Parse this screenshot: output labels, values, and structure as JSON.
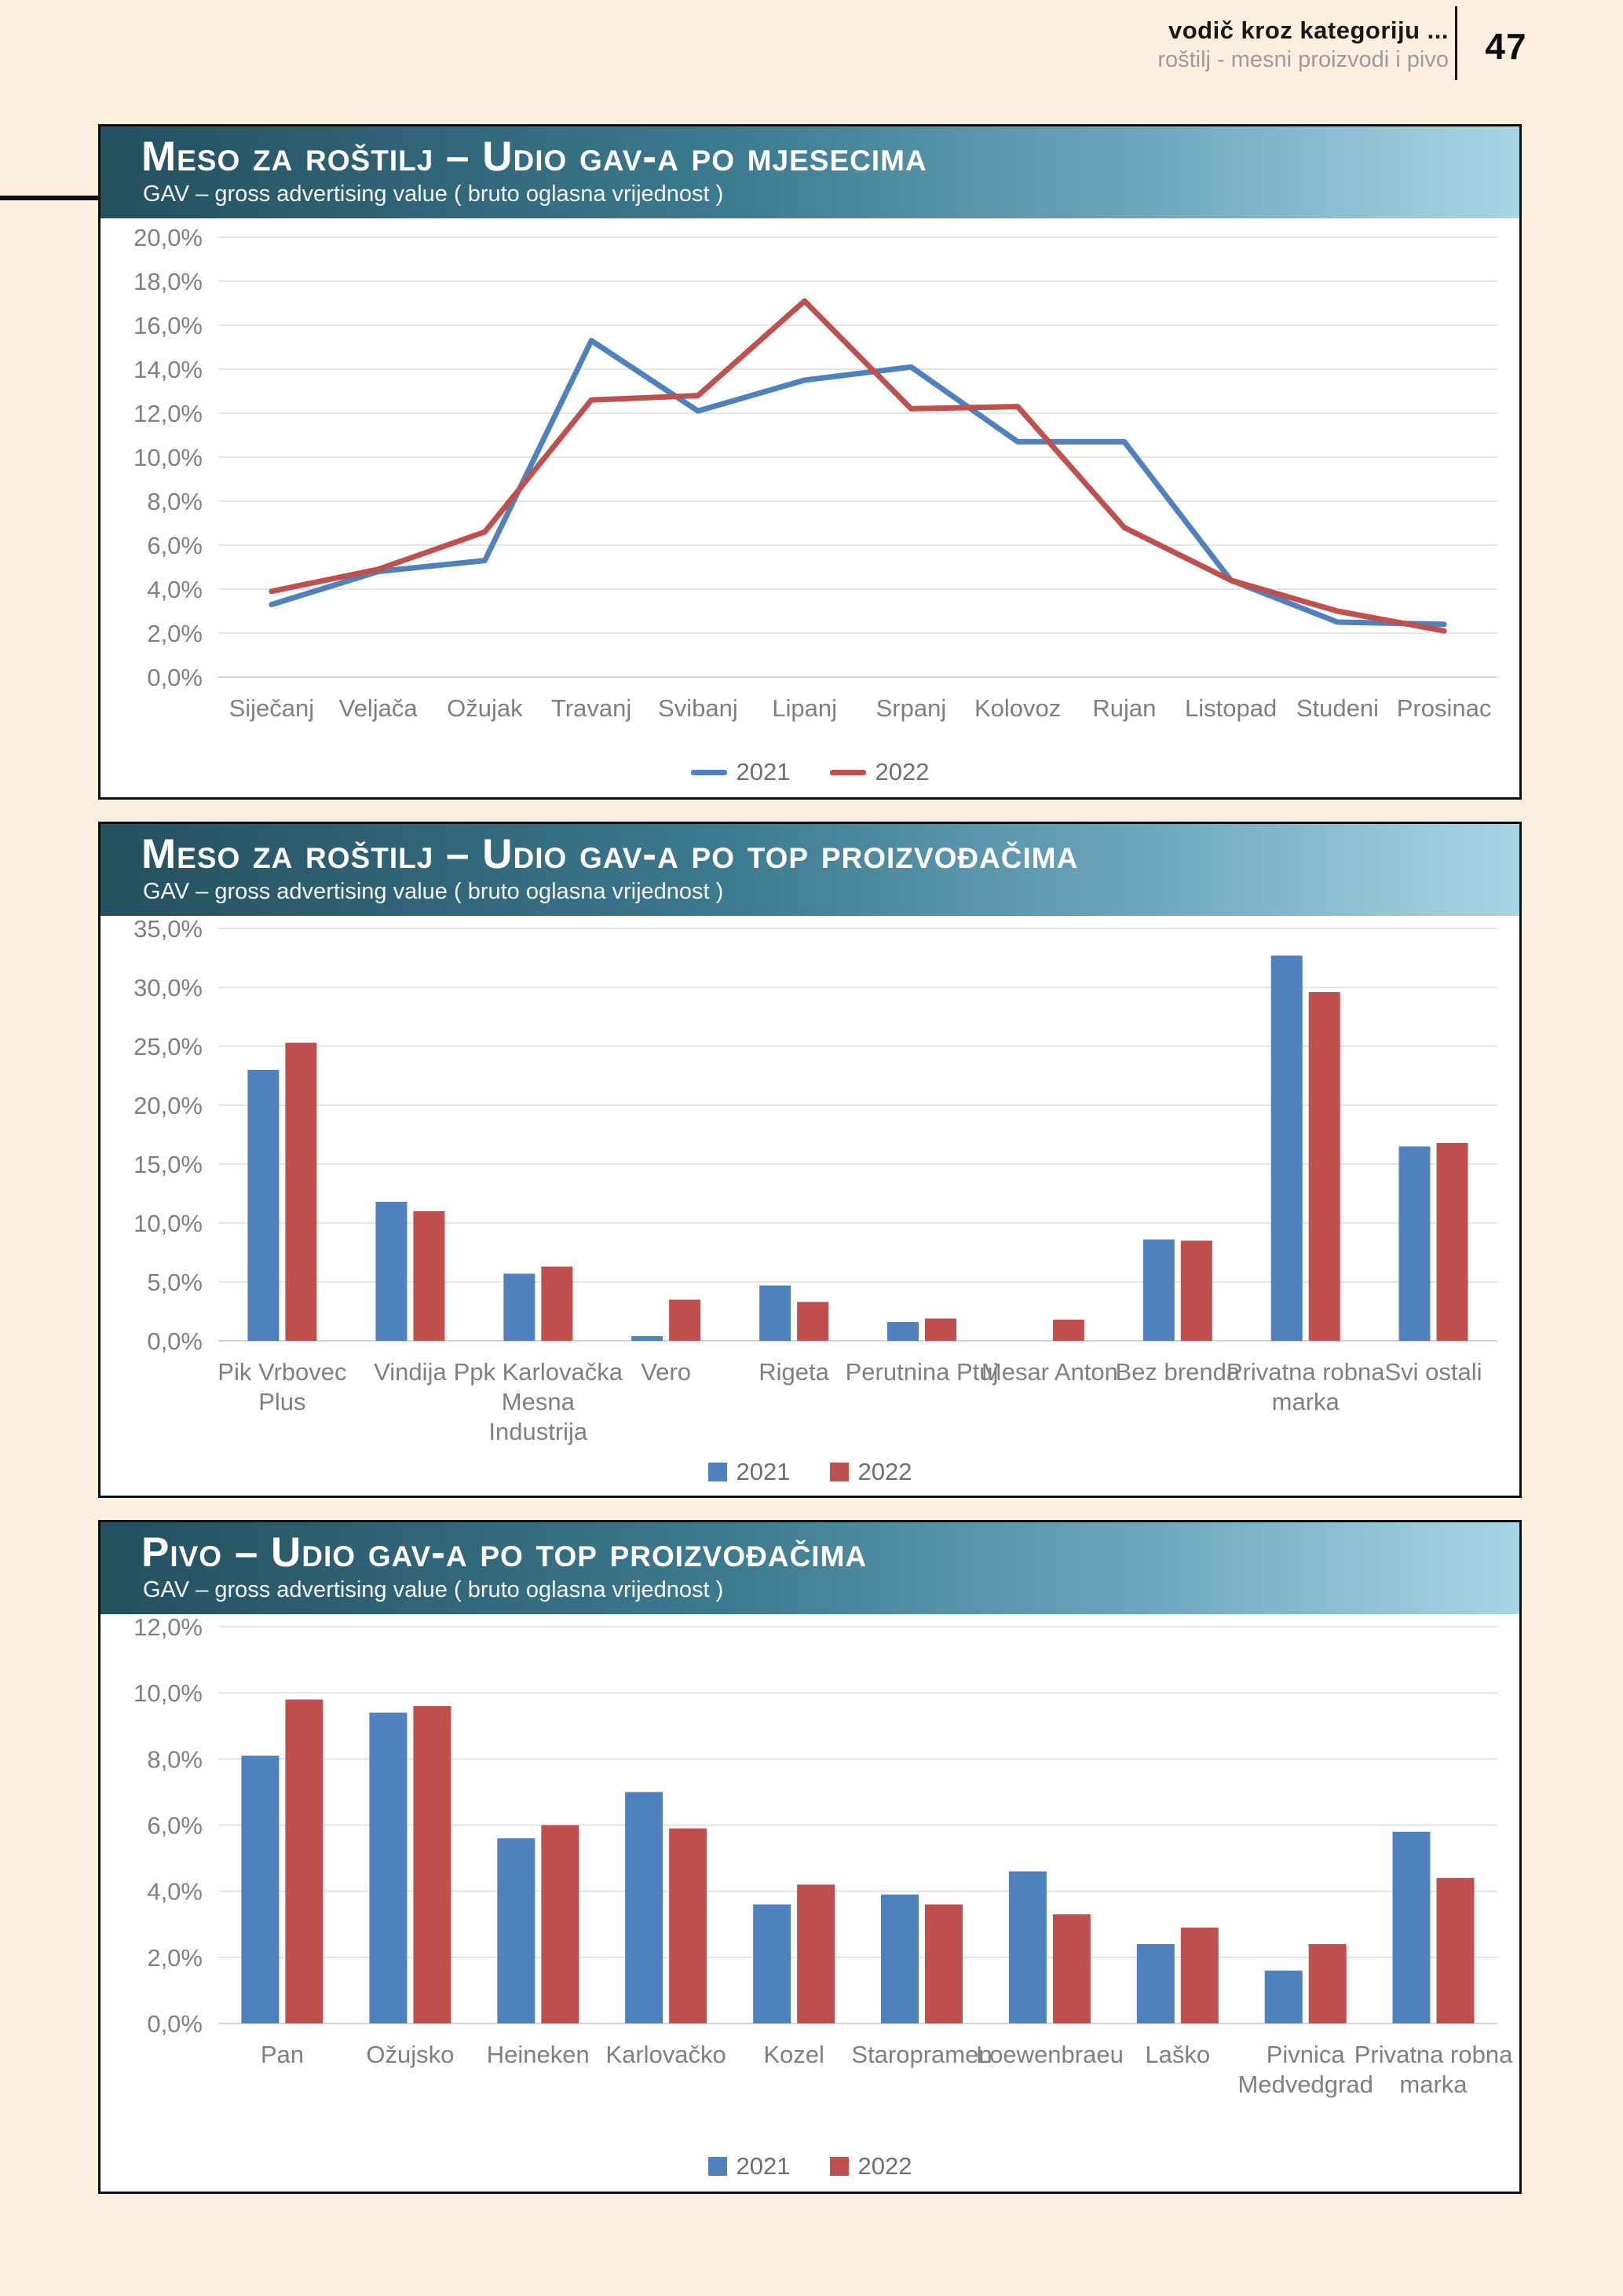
{
  "header": {
    "title": "vodič kroz kategoriju ...",
    "subtitle": "roštilj - mesni proizvodi i pivo",
    "page_number": "47"
  },
  "colors": {
    "series_2021": "#4e81bd",
    "series_2022": "#c0504d",
    "title_gradient_start": "#24505f",
    "title_gradient_end": "#a9d5e5",
    "page_background": "#fcefdf",
    "grid": "#dedede",
    "axis_line": "#c9c9c9",
    "tick_text": "#7f7f7f"
  },
  "charts": [
    {
      "title": "Meso za roštilj – Udio gav-a po mjesecima",
      "subtitle": "GAV – gross advertising value ( bruto oglasna vrijednost )",
      "chart_data": {
        "type": "line",
        "categories": [
          "Siječanj",
          "Veljača",
          "Ožujak",
          "Travanj",
          "Svibanj",
          "Lipanj",
          "Srpanj",
          "Kolovoz",
          "Rujan",
          "Listopad",
          "Studeni",
          "Prosinac"
        ],
        "category_lines": [
          [
            "Siječanj"
          ],
          [
            "Veljača"
          ],
          [
            "Ožujak"
          ],
          [
            "Travanj"
          ],
          [
            "Svibanj"
          ],
          [
            "Lipanj"
          ],
          [
            "Srpanj"
          ],
          [
            "Kolovoz"
          ],
          [
            "Rujan"
          ],
          [
            "Listopad"
          ],
          [
            "Studeni"
          ],
          [
            "Prosinac"
          ]
        ],
        "series": [
          {
            "name": "2021",
            "color": "#4e81bd",
            "values": [
              3.3,
              4.8,
              5.3,
              15.3,
              12.1,
              13.5,
              14.1,
              10.7,
              10.7,
              4.4,
              2.5,
              2.4
            ]
          },
          {
            "name": "2022",
            "color": "#c0504d",
            "values": [
              3.9,
              4.9,
              6.6,
              12.6,
              12.8,
              17.1,
              12.2,
              12.3,
              6.8,
              4.4,
              3.0,
              2.1
            ]
          }
        ],
        "ylim": [
          0,
          20
        ],
        "ystep": 2,
        "yticks": [
          "0,0%",
          "2,0%",
          "4,0%",
          "6,0%",
          "8,0%",
          "10,0%",
          "12,0%",
          "14,0%",
          "16,0%",
          "18,0%",
          "20,0%"
        ],
        "grid": true,
        "legend_position": "bottom"
      }
    },
    {
      "title": "Meso za roštilj – Udio gav-a po top proizvođačima",
      "subtitle": "GAV – gross advertising value ( bruto oglasna vrijednost )",
      "chart_data": {
        "type": "bar",
        "categories": [
          "Pik Vrbovec Plus",
          "Vindija",
          "Ppk Karlovačka Mesna Industrija",
          "Vero",
          "Rigeta",
          "Perutnina Ptuj",
          "Mesar Anton",
          "Bez brenda",
          "Privatna robna marka",
          "Svi ostali"
        ],
        "category_lines": [
          [
            "Pik Vrbovec",
            "Plus"
          ],
          [
            "Vindija"
          ],
          [
            "Ppk Karlovačka",
            "Mesna",
            "Industrija"
          ],
          [
            "Vero"
          ],
          [
            "Rigeta"
          ],
          [
            "Perutnina Ptuj"
          ],
          [
            "Mesar Anton"
          ],
          [
            "Bez brenda"
          ],
          [
            "Privatna robna",
            "marka"
          ],
          [
            "Svi ostali"
          ]
        ],
        "series": [
          {
            "name": "2021",
            "color": "#4e81bd",
            "values": [
              23.0,
              11.8,
              5.7,
              0.4,
              4.7,
              1.6,
              0.0,
              8.6,
              32.7,
              16.5
            ]
          },
          {
            "name": "2022",
            "color": "#c0504d",
            "values": [
              25.3,
              11.0,
              6.3,
              3.5,
              3.3,
              1.9,
              1.8,
              8.5,
              29.6,
              16.8
            ]
          }
        ],
        "ylim": [
          0,
          35
        ],
        "ystep": 5,
        "yticks": [
          "0,0%",
          "5,0%",
          "10,0%",
          "15,0%",
          "20,0%",
          "25,0%",
          "30,0%",
          "35,0%"
        ],
        "grid": true,
        "legend_position": "bottom"
      }
    },
    {
      "title": "Pivo – Udio gav-a po top proizvođačima",
      "subtitle": "GAV – gross advertising value ( bruto oglasna vrijednost )",
      "chart_data": {
        "type": "bar",
        "categories": [
          "Pan",
          "Ožujsko",
          "Heineken",
          "Karlovačko",
          "Kozel",
          "Staropramen",
          "Loewenbraeu",
          "Laško",
          "Pivnica Medvedgrad",
          "Privatna robna marka"
        ],
        "category_lines": [
          [
            "Pan"
          ],
          [
            "Ožujsko"
          ],
          [
            "Heineken"
          ],
          [
            "Karlovačko"
          ],
          [
            "Kozel"
          ],
          [
            "Staropramen"
          ],
          [
            "Loewenbraeu"
          ],
          [
            "Laško"
          ],
          [
            "Pivnica",
            "Medvedgrad"
          ],
          [
            "Privatna robna",
            "marka"
          ]
        ],
        "series": [
          {
            "name": "2021",
            "color": "#4e81bd",
            "values": [
              8.1,
              9.4,
              5.6,
              7.0,
              3.6,
              3.9,
              4.6,
              2.4,
              1.6,
              5.8
            ]
          },
          {
            "name": "2022",
            "color": "#c0504d",
            "values": [
              9.8,
              9.6,
              6.0,
              5.9,
              4.2,
              3.6,
              3.3,
              2.9,
              2.4,
              4.4
            ]
          }
        ],
        "ylim": [
          0,
          12
        ],
        "ystep": 2,
        "yticks": [
          "0,0%",
          "2,0%",
          "4,0%",
          "6,0%",
          "8,0%",
          "10,0%",
          "12,0%"
        ],
        "grid": true,
        "legend_position": "bottom"
      }
    }
  ]
}
